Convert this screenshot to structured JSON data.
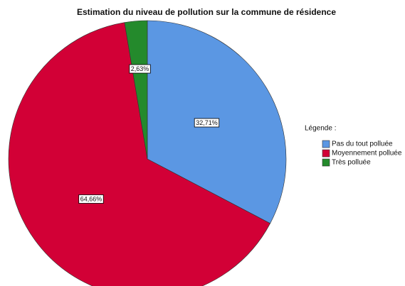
{
  "chart_data": {
    "type": "pie",
    "title": "Estimation du niveau de pollution sur la commune de résidence",
    "legend_title": "Légende :",
    "categories": [
      "Pas du tout polluée",
      "Moyennement polluée",
      "Très polluée"
    ],
    "values": [
      32.71,
      64.66,
      2.63
    ],
    "value_labels": [
      "32,71%",
      "64,66%",
      "2,63%"
    ],
    "colors": [
      "#5b97e3",
      "#d20036",
      "#248a2c"
    ],
    "legend": "right"
  }
}
